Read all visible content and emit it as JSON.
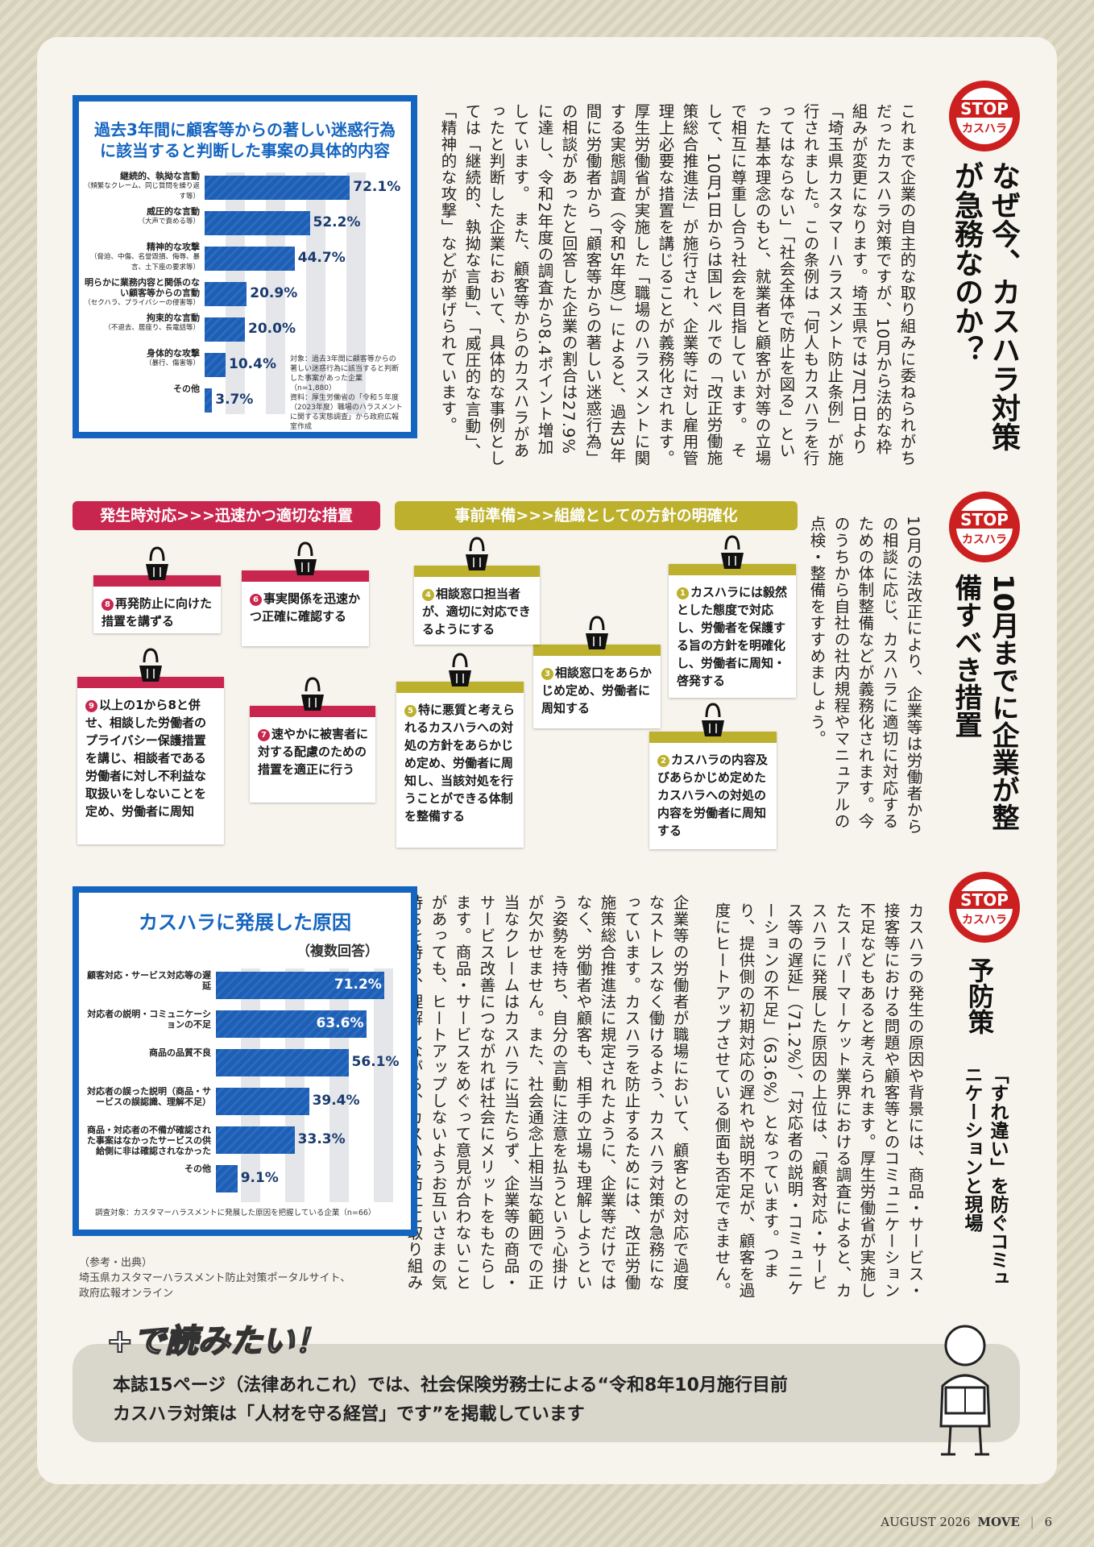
{
  "stop_badge": {
    "top": "STOP",
    "bottom": "カスハラ"
  },
  "section1": {
    "title": "なぜ今、カスハラ対策が急務なのか？",
    "body": "これまで企業の自主的な取り組みに委ねられがちだったカスハラ対策ですが、10月から法的な枠組みが変更になります。埼玉県では7月1日より「埼玉県カスタマーハラスメント防止条例」が施行されました。この条例は「何人もカスハラを行ってはならない」「社会全体で防止を図る」といった基本理念のもと、就業者と顧客が対等の立場で相互に尊重し合う社会を目指しています。　そして、10月1日からは国レベルでの「改正労働施策総合推進法」が施行され、企業等に対し雇用管理上必要な措置を講じることが義務化されます。　厚生労働省が実施した「職場のハラスメントに関する実態調査（令和5年度）」によると、過去3年間に労働者から「顧客等からの著しい迷惑行為」の相談があったと回答した企業の割合は27.9%に達し、令和2年度の調査から8.4ポイント増加しています。　また、顧客等からのカスハラがあったと判断した企業において、具体的な事例としては「継続的、執拗な言動」、「威圧的な言動」、「精神的な攻撃」などが挙げられています。"
  },
  "section2": {
    "title": "10月までに企業が整備すべき措置",
    "body": "10月の法改正により、企業等は労働者からの相談に応じ、カスハラに適切に対応するための体制整備などが義務化されます。今のうちから自社の社内規程やマニュアルの点検・整備をすすめましょう。"
  },
  "section3": {
    "title": "予防策",
    "subtitle": "「すれ違い」を防ぐコミュニケーションと現場",
    "body1": "カスハラの発生の原因や背景には、商品・サービス・接客等における問題や顧客等とのコミュニケーション不足などもあると考えられます。厚生労働省が実施したスーパーマーケット業界における調査によると、カスハラに発展した原因の上位は、「顧客対応・サービス等の遅延」（71.2%）、「対応者の説明・コミュニケーションの不足」（63.6%）となっています。つまり、提供側の初期対応の遅れや説明不足が、顧客を過度にヒートアップさせている側面も否定できません。",
    "body2": "企業等の労働者が職場において、顧客との対応で過度なストレスなく働けるよう、カスハラ対策が急務になっています。カスハラを防止するためには、改正労働施策総合推進法に規定されたように、企業等だけではなく、労働者や顧客も、相手の立場も理解しようという姿勢を持ち、自分の言動に注意を払うという心掛けが欠かせません。また、社会通念上相当な範囲での正当なクレームはカスハラに当たらず、企業等の商品・サービス改善につながれば社会にメリットをもたらします。商品・サービスをめぐって意見が合わないことがあっても、ヒートアップしないようお互いさまの気持ちを持ち、理解しながら、カスハラ防止に取り組みましょう。"
  },
  "chart_data": [
    {
      "type": "bar",
      "title": "過去3年間に顧客等からの著しい迷惑行為に該当すると判断した事案の具体的内容",
      "categories": [
        "継続的、執拗な言動",
        "威圧的な言動",
        "精神的な攻撃",
        "明らかに業務内容と関係のない顧客等からの言動",
        "拘束的な言動",
        "身体的な攻撃",
        "その他"
      ],
      "sublabels": [
        "（頻繁なクレーム、同じ質問を繰り返す等）",
        "（大声で責める等）",
        "（脅迫、中傷、名誉毀損、侮辱、暴言、土下座の要求等）",
        "（セクハラ、プライバシーの侵害等）",
        "（不退去、居座り、長電話等）",
        "（暴行、傷害等）",
        ""
      ],
      "values": [
        72.1,
        52.2,
        44.7,
        20.9,
        20.0,
        10.4,
        3.7
      ],
      "value_labels": [
        "72.1%",
        "52.2%",
        "44.7%",
        "20.9%",
        "20.0%",
        "10.4%",
        "3.7%"
      ],
      "xlim": [
        0,
        80
      ],
      "notes": [
        "対象：過去3年間に顧客等からの著しい迷惑行為に該当すると判断した事案があった企業（n=1,880）",
        "資料：厚生労働省の「令和５年度（2023年度）職場のハラスメントに関する実態調査」から政府広報室作成"
      ]
    },
    {
      "type": "bar",
      "title": "カスハラに発展した原因",
      "subtitle": "（複数回答）",
      "categories": [
        "顧客対応・サービス対応等の遅延",
        "対応者の説明・コミュニケーションの不足",
        "商品の品質不良",
        "対応者の誤った説明（商品・サービスの誤認識、理解不足）",
        "商品・対応者の不備が確認された事案はなかったサービスの供給側に非は確認されなかった",
        "その他"
      ],
      "values": [
        71.2,
        63.6,
        56.1,
        39.4,
        33.3,
        9.1
      ],
      "value_labels": [
        "71.2%",
        "63.6%",
        "56.1%",
        "39.4%",
        "33.3%",
        "9.1%"
      ],
      "xlim": [
        0,
        75
      ],
      "notes": [
        "調査対象：カスタマーハラスメントに発展した原因を把握している企業（n=66）"
      ]
    }
  ],
  "measures": {
    "banner_left": "発生時対応>>>迅速かつ適切な措置",
    "banner_right": "事前準備>>>組織としての方針の明確化",
    "items": [
      {
        "n": "1",
        "text": "カスハラには毅然とした態度で対応し、労働者を保護する旨の方針を明確化し、労働者に周知・啓発する"
      },
      {
        "n": "2",
        "text": "カスハラの内容及びあらかじめ定めたカスハラへの対処の内容を労働者に周知する"
      },
      {
        "n": "3",
        "text": "相談窓口をあらかじめ定め、労働者に周知する"
      },
      {
        "n": "4",
        "text": "相談窓口担当者が、適切に対応できるようにする"
      },
      {
        "n": "5",
        "text": "特に悪質と考えられるカスハラへの対処の方針をあらかじめ定め、労働者に周知し、当該対処を行うことができる体制を整備する"
      },
      {
        "n": "6",
        "text": "事実関係を迅速かつ正確に確認する"
      },
      {
        "n": "7",
        "text": "速やかに被害者に対する配慮のための措置を適正に行う"
      },
      {
        "n": "8",
        "text": "再発防止に向けた措置を講ずる"
      },
      {
        "n": "9",
        "text": "以上の1から8と併せ、相談した労働者のプライバシー保護措置を講じ、相談者である労働者に対し不利益な取扱いをしないことを定め、労働者に周知"
      }
    ],
    "colors": {
      "left": "#c8264f",
      "right": "#bdb02d"
    }
  },
  "reference": {
    "label": "（参考・出典）",
    "text1": "埼玉県カスタマーハラスメント防止対策ポータルサイト、",
    "text2": "政府広報オンライン"
  },
  "readmore": {
    "heading": "+で読みたい！",
    "line1": "本誌15ページ（法律あれこれ）では、社会保険労務士による“令和8年10月施行目前",
    "line2": "カスハラ対策は「人材を守る経営」です”を掲載しています"
  },
  "footer": {
    "issue": "AUGUST 2026",
    "magazine": "MOVE",
    "page": "6"
  }
}
